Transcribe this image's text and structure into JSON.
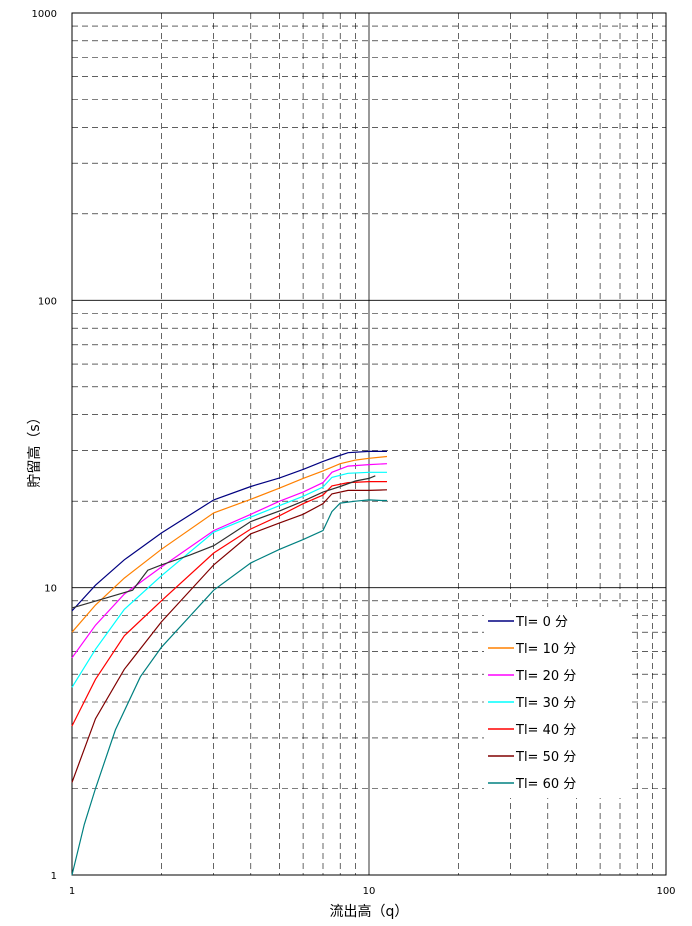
{
  "chart_data": {
    "type": "line",
    "title": "",
    "xlabel": "流出高（q）",
    "ylabel": "貯留高（s）",
    "x_scale": "log",
    "y_scale": "log",
    "xlim": [
      1,
      100
    ],
    "ylim": [
      1,
      1000
    ],
    "x_ticks": [
      "1",
      "10",
      "100"
    ],
    "y_ticks": [
      "1",
      "10",
      "100",
      "1000"
    ],
    "grid": "major solid, minor dashed",
    "legend_position": "lower-right",
    "series": [
      {
        "name": "Tl= 0 分",
        "color": "#000080",
        "points": [
          [
            1,
            8.3
          ],
          [
            1.2,
            10.2
          ],
          [
            1.5,
            12.5
          ],
          [
            2,
            15.5
          ],
          [
            3,
            20.2
          ],
          [
            4,
            22.5
          ],
          [
            5,
            24.1
          ],
          [
            6,
            25.8
          ],
          [
            7,
            27.5
          ],
          [
            7.7,
            28.5
          ],
          [
            8.5,
            29.5
          ],
          [
            10,
            29.8
          ],
          [
            11.5,
            29.8
          ]
        ]
      },
      {
        "name": "Tl= 10 分",
        "color": "#ff8000",
        "points": [
          [
            1,
            7.0
          ],
          [
            1.2,
            8.7
          ],
          [
            1.5,
            10.8
          ],
          [
            2,
            13.6
          ],
          [
            3,
            18.2
          ],
          [
            4,
            20.3
          ],
          [
            5,
            22.2
          ],
          [
            6,
            24.0
          ],
          [
            7,
            25.5
          ],
          [
            8,
            27.0
          ],
          [
            9,
            27.8
          ],
          [
            10,
            28.2
          ],
          [
            11.5,
            28.6
          ]
        ]
      },
      {
        "name": "Tl= 20 分",
        "color": "#ff00ff",
        "points": [
          [
            1,
            5.7
          ],
          [
            1.2,
            7.4
          ],
          [
            1.5,
            9.5
          ],
          [
            2,
            11.8
          ],
          [
            3,
            15.8
          ],
          [
            4,
            18.0
          ],
          [
            5,
            20.0
          ],
          [
            6,
            21.5
          ],
          [
            7,
            23.2
          ],
          [
            7.5,
            25.2
          ],
          [
            8.5,
            26.5
          ],
          [
            10,
            26.8
          ],
          [
            11.5,
            27.0
          ]
        ]
      },
      {
        "name": "Tl= 30 分",
        "color": "#00ffff",
        "points": [
          [
            1,
            4.5
          ],
          [
            1.2,
            6.1
          ],
          [
            1.5,
            8.4
          ],
          [
            2,
            11.0
          ],
          [
            3,
            15.6
          ],
          [
            4,
            17.6
          ],
          [
            5,
            19.3
          ],
          [
            6,
            20.8
          ],
          [
            7,
            22.4
          ],
          [
            7.5,
            24.2
          ],
          [
            8.5,
            25.0
          ],
          [
            10,
            25.2
          ],
          [
            11.5,
            25.2
          ]
        ]
      },
      {
        "name": "Tl= 40 分",
        "color": "#ff0000",
        "points": [
          [
            1,
            3.3
          ],
          [
            1.2,
            4.8
          ],
          [
            1.5,
            6.8
          ],
          [
            2,
            9.0
          ],
          [
            3,
            13.2
          ],
          [
            4,
            16.0
          ],
          [
            5,
            17.8
          ],
          [
            6,
            19.6
          ],
          [
            7,
            21.0
          ],
          [
            7.5,
            22.6
          ],
          [
            8.5,
            23.2
          ],
          [
            10,
            23.4
          ],
          [
            11.5,
            23.4
          ]
        ]
      },
      {
        "name": "Tl= 50 分",
        "color": "#800000",
        "points": [
          [
            1,
            2.1
          ],
          [
            1.2,
            3.5
          ],
          [
            1.5,
            5.2
          ],
          [
            2,
            7.6
          ],
          [
            3,
            12.0
          ],
          [
            4,
            15.4
          ],
          [
            5,
            16.8
          ],
          [
            6,
            18.0
          ],
          [
            7,
            19.6
          ],
          [
            7.5,
            21.2
          ],
          [
            8.5,
            21.8
          ],
          [
            10,
            21.8
          ],
          [
            11.5,
            21.9
          ]
        ]
      },
      {
        "name": "Tl= 60 分",
        "color": "#008080",
        "points": [
          [
            1,
            1.0
          ],
          [
            1.1,
            1.5
          ],
          [
            1.2,
            2.0
          ],
          [
            1.4,
            3.2
          ],
          [
            1.7,
            4.9
          ],
          [
            2,
            6.2
          ],
          [
            3,
            9.8
          ],
          [
            4,
            12.2
          ],
          [
            5,
            13.6
          ],
          [
            6,
            14.7
          ],
          [
            7,
            15.8
          ],
          [
            7.5,
            18.4
          ],
          [
            8,
            19.7
          ],
          [
            9,
            20.0
          ],
          [
            10,
            20.2
          ],
          [
            11,
            20.1
          ],
          [
            11.5,
            20.1
          ]
        ]
      },
      {
        "name": "",
        "color": "#303030",
        "points": [
          [
            1,
            8.5
          ],
          [
            1.3,
            9.2
          ],
          [
            1.6,
            9.8
          ],
          [
            1.8,
            11.5
          ],
          [
            2,
            12.0
          ],
          [
            2.5,
            13.0
          ],
          [
            3,
            14.0
          ],
          [
            4,
            17.0
          ],
          [
            5,
            18.5
          ],
          [
            6,
            20.0
          ],
          [
            7,
            21.5
          ],
          [
            8,
            22.5
          ],
          [
            9,
            23.5
          ],
          [
            10,
            24.0
          ],
          [
            10.5,
            24.5
          ]
        ]
      }
    ]
  }
}
